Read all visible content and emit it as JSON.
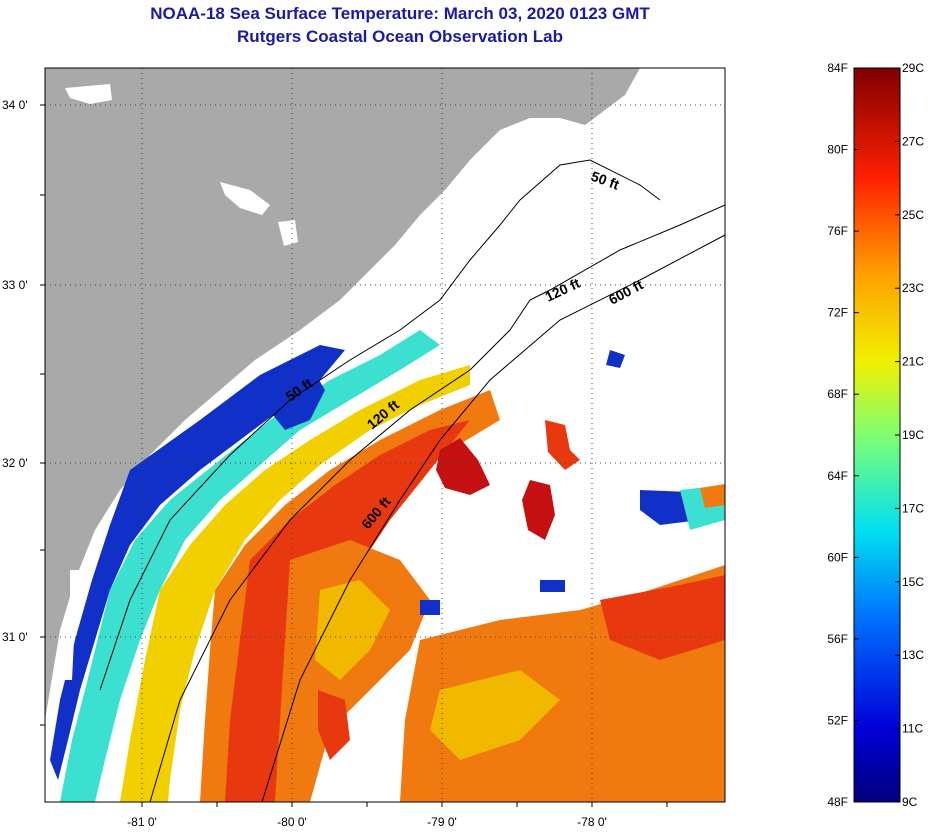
{
  "title": {
    "line1": "NOAA-18 Sea Surface Temperature:  March 03, 2020 0123 GMT",
    "line2": "Rutgers Coastal Ocean Observation Lab"
  },
  "axes": {
    "lat_labels": [
      "34 0'",
      "33 0'",
      "32 0'",
      "31 0'"
    ],
    "lon_labels": [
      "-81 0'",
      "-80 0'",
      "-79 0'",
      "-78 0'"
    ]
  },
  "contours": {
    "label_50": "50 ft",
    "label_120": "120 ft",
    "label_600": "600 ft"
  },
  "colorbar": {
    "fahrenheit": [
      "84F",
      "80F",
      "76F",
      "72F",
      "68F",
      "64F",
      "60F",
      "56F",
      "52F",
      "48F"
    ],
    "celsius": [
      "29C",
      "27C",
      "25C",
      "23C",
      "21C",
      "19C",
      "17C",
      "15C",
      "13C",
      "11C",
      "9C"
    ]
  },
  "colors": {
    "land": "#a9a9a9",
    "no_data": "#ffffff",
    "title": "#1a1aa6",
    "warm": "#e8380f",
    "hot": "#c41010",
    "mid": "#f2b800",
    "cool": "#3ce0d0",
    "cold": "#1030c8"
  }
}
